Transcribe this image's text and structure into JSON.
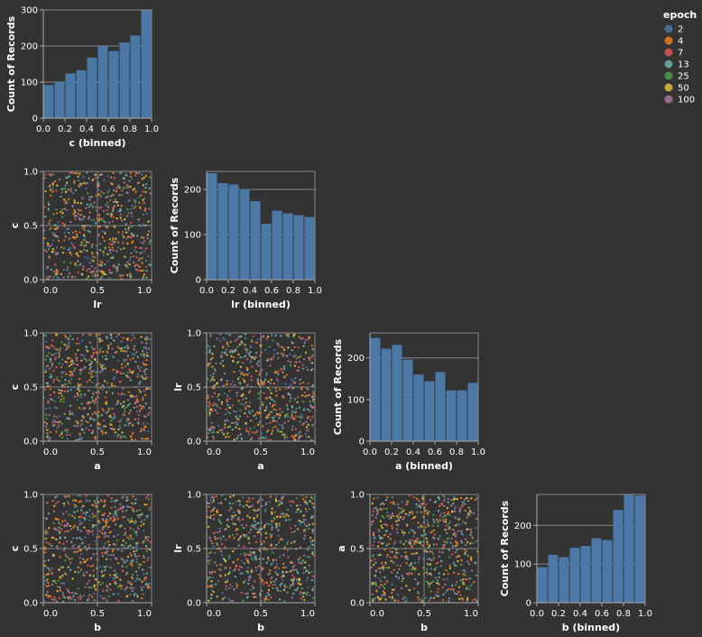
{
  "legend": {
    "title": "epoch",
    "items": [
      {
        "label": "2",
        "color": "#4c78a8"
      },
      {
        "label": "4",
        "color": "#f58518"
      },
      {
        "label": "7",
        "color": "#e45756"
      },
      {
        "label": "13",
        "color": "#72b7b2"
      },
      {
        "label": "25",
        "color": "#54a24b"
      },
      {
        "label": "50",
        "color": "#eeca3b"
      },
      {
        "label": "100",
        "color": "#b279a2"
      }
    ]
  },
  "chart_data": [
    {
      "type": "bar",
      "panel": "hist-c",
      "xlabel": "c (binned)",
      "ylabel": "Count of Records",
      "categories": [
        "0.0-0.1",
        "0.1-0.2",
        "0.2-0.3",
        "0.3-0.4",
        "0.4-0.5",
        "0.5-0.6",
        "0.6-0.7",
        "0.7-0.8",
        "0.8-0.9",
        "0.9-1.0"
      ],
      "values": [
        92,
        100,
        124,
        133,
        168,
        200,
        186,
        210,
        229,
        299
      ],
      "xticks": [
        "0.0",
        "0.2",
        "0.4",
        "0.6",
        "0.8",
        "1.0"
      ],
      "yticks": [
        "0",
        "100",
        "200",
        "300"
      ],
      "ylim": [
        0,
        300
      ]
    },
    {
      "type": "scatter",
      "panel": "scatter-lr-c",
      "xlabel": "lr",
      "ylabel": "c",
      "xticks": [
        "0.0",
        "0.5",
        "1.0"
      ],
      "yticks": [
        "0.0",
        "0.5",
        "1.0"
      ],
      "xlim": [
        0,
        1
      ],
      "ylim": [
        0,
        1
      ]
    },
    {
      "type": "bar",
      "panel": "hist-lr",
      "xlabel": "lr (binned)",
      "ylabel": "Count of Records",
      "categories": [
        "0.0-0.1",
        "0.1-0.2",
        "0.2-0.3",
        "0.3-0.4",
        "0.4-0.5",
        "0.5-0.6",
        "0.6-0.7",
        "0.7-0.8",
        "0.8-0.9",
        "0.9-1.0"
      ],
      "values": [
        236,
        214,
        211,
        201,
        174,
        124,
        153,
        147,
        143,
        139
      ],
      "xticks": [
        "0.0",
        "0.2",
        "0.4",
        "0.6",
        "0.8",
        "1.0"
      ],
      "yticks": [
        "0",
        "100",
        "200"
      ],
      "ylim": [
        0,
        240
      ]
    },
    {
      "type": "scatter",
      "panel": "scatter-a-c",
      "xlabel": "a",
      "ylabel": "c",
      "xticks": [
        "0.0",
        "0.5",
        "1.0"
      ],
      "yticks": [
        "0.0",
        "0.5",
        "1.0"
      ],
      "xlim": [
        0,
        1
      ],
      "ylim": [
        0,
        1
      ]
    },
    {
      "type": "scatter",
      "panel": "scatter-a-lr",
      "xlabel": "a",
      "ylabel": "lr",
      "xticks": [
        "0.0",
        "0.5",
        "1.0"
      ],
      "yticks": [
        "0.0",
        "0.5",
        "1.0"
      ],
      "xlim": [
        0,
        1
      ],
      "ylim": [
        0,
        1
      ]
    },
    {
      "type": "bar",
      "panel": "hist-a",
      "xlabel": "a (binned)",
      "ylabel": "Count of Records",
      "categories": [
        "0.0-0.1",
        "0.1-0.2",
        "0.2-0.3",
        "0.3-0.4",
        "0.4-0.5",
        "0.5-0.6",
        "0.6-0.7",
        "0.7-0.8",
        "0.8-0.9",
        "0.9-1.0"
      ],
      "values": [
        248,
        222,
        231,
        196,
        160,
        144,
        166,
        122,
        122,
        140
      ],
      "xticks": [
        "0.0",
        "0.2",
        "0.4",
        "0.6",
        "0.8",
        "1.0"
      ],
      "yticks": [
        "0",
        "100",
        "200"
      ],
      "ylim": [
        0,
        260
      ]
    },
    {
      "type": "scatter",
      "panel": "scatter-b-c",
      "xlabel": "b",
      "ylabel": "c",
      "xticks": [
        "0.0",
        "0.5",
        "1.0"
      ],
      "yticks": [
        "0.0",
        "0.5",
        "1.0"
      ],
      "xlim": [
        0,
        1
      ],
      "ylim": [
        0,
        1
      ]
    },
    {
      "type": "scatter",
      "panel": "scatter-b-lr",
      "xlabel": "b",
      "ylabel": "lr",
      "xticks": [
        "0.0",
        "0.5",
        "1.0"
      ],
      "yticks": [
        "0.0",
        "0.5",
        "1.0"
      ],
      "xlim": [
        0,
        1
      ],
      "ylim": [
        0,
        1
      ]
    },
    {
      "type": "scatter",
      "panel": "scatter-b-a",
      "xlabel": "b",
      "ylabel": "a",
      "xticks": [
        "0.0",
        "0.5",
        "1.0"
      ],
      "yticks": [
        "0.0",
        "0.5",
        "1.0"
      ],
      "xlim": [
        0,
        1
      ],
      "ylim": [
        0,
        1
      ]
    },
    {
      "type": "bar",
      "panel": "hist-b",
      "xlabel": "b (binned)",
      "ylabel": "Count of Records",
      "categories": [
        "0.0-0.1",
        "0.1-0.2",
        "0.2-0.3",
        "0.3-0.4",
        "0.4-0.5",
        "0.5-0.6",
        "0.6-0.7",
        "0.7-0.8",
        "0.8-0.9",
        "0.9-1.0"
      ],
      "values": [
        92,
        124,
        118,
        142,
        147,
        167,
        162,
        240,
        279,
        277
      ],
      "xticks": [
        "0.0",
        "0.2",
        "0.4",
        "0.6",
        "0.8",
        "1.0"
      ],
      "yticks": [
        "0",
        "100",
        "200"
      ],
      "ylim": [
        0,
        280
      ]
    }
  ]
}
